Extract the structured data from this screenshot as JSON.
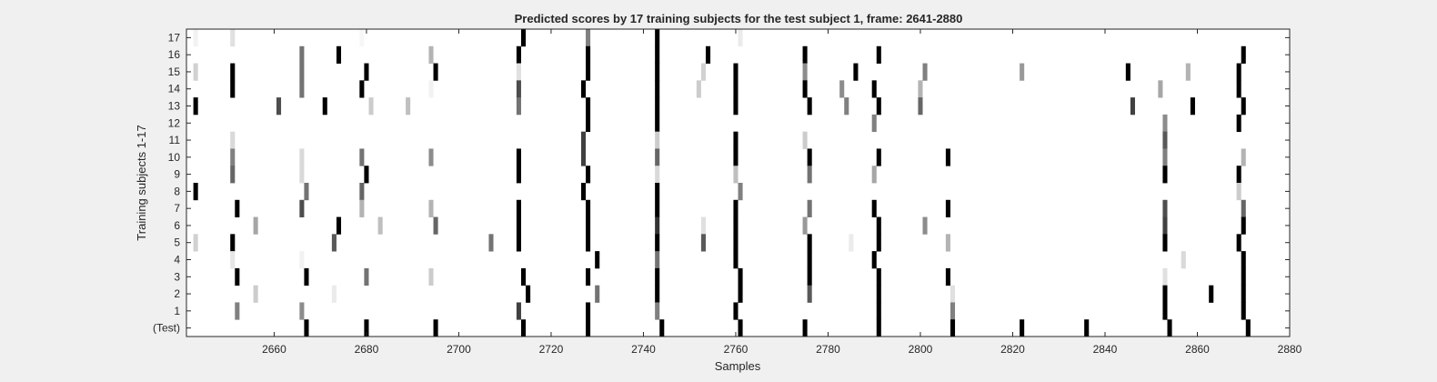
{
  "chart_data": {
    "type": "heatmap",
    "title": "Predicted scores by 17 training subjects for the test subject 1, frame: 2641-2880",
    "xlabel": "Samples",
    "ylabel": "Training subjects 1-17",
    "xlim": [
      2641,
      2880
    ],
    "x_ticks": [
      2660,
      2680,
      2700,
      2720,
      2740,
      2760,
      2780,
      2800,
      2820,
      2840,
      2860,
      2880
    ],
    "y_tick_labels": [
      "17",
      "16",
      "15",
      "14",
      "13",
      "12",
      "11",
      "10",
      "9",
      "8",
      "7",
      "6",
      "5",
      "4",
      "3",
      "2",
      "1",
      "(Test)"
    ],
    "colormap": "gray",
    "colors": {
      "background": "#f0f0f0",
      "axes_face": "#ffffff",
      "axes_edge": "#262626",
      "text": "#262626"
    },
    "grid": false,
    "legend": "none",
    "value_range": [
      0,
      1
    ],
    "note_values": "each mark: sample x and score intensity (1 = black, 0 = white)",
    "rows": [
      {
        "label": "17",
        "marks": [
          [
            2643,
            0.05
          ],
          [
            2651,
            0.12
          ],
          [
            2679,
            0.03
          ],
          [
            2714,
            1.0
          ],
          [
            2728,
            0.5
          ],
          [
            2743,
            1.0
          ],
          [
            2761,
            0.08
          ]
        ]
      },
      {
        "label": "16",
        "marks": [
          [
            2666,
            0.55
          ],
          [
            2674,
            1.0
          ],
          [
            2694,
            0.3
          ],
          [
            2713,
            1.0
          ],
          [
            2728,
            1.0
          ],
          [
            2743,
            1.0
          ],
          [
            2754,
            1.0
          ],
          [
            2775,
            1.0
          ],
          [
            2791,
            1.0
          ],
          [
            2870,
            1.0
          ]
        ]
      },
      {
        "label": "15",
        "marks": [
          [
            2643,
            0.18
          ],
          [
            2651,
            1.0
          ],
          [
            2666,
            0.55
          ],
          [
            2680,
            1.0
          ],
          [
            2695,
            1.0
          ],
          [
            2713,
            0.12
          ],
          [
            2728,
            1.0
          ],
          [
            2743,
            1.0
          ],
          [
            2753,
            0.18
          ],
          [
            2760,
            1.0
          ],
          [
            2775,
            0.45
          ],
          [
            2786,
            1.0
          ],
          [
            2801,
            0.5
          ],
          [
            2822,
            0.4
          ],
          [
            2845,
            1.0
          ],
          [
            2858,
            0.3
          ],
          [
            2869,
            1.0
          ]
        ]
      },
      {
        "label": "14",
        "marks": [
          [
            2651,
            1.0
          ],
          [
            2666,
            0.55
          ],
          [
            2679,
            1.0
          ],
          [
            2694,
            0.05
          ],
          [
            2713,
            0.7
          ],
          [
            2727,
            1.0
          ],
          [
            2743,
            1.0
          ],
          [
            2752,
            0.2
          ],
          [
            2760,
            1.0
          ],
          [
            2775,
            1.0
          ],
          [
            2783,
            0.45
          ],
          [
            2790,
            1.0
          ],
          [
            2800,
            0.3
          ],
          [
            2852,
            0.35
          ],
          [
            2869,
            1.0
          ]
        ]
      },
      {
        "label": "13",
        "marks": [
          [
            2643,
            1.0
          ],
          [
            2661,
            0.7
          ],
          [
            2671,
            1.0
          ],
          [
            2681,
            0.2
          ],
          [
            2689,
            0.25
          ],
          [
            2713,
            0.55
          ],
          [
            2728,
            1.0
          ],
          [
            2743,
            1.0
          ],
          [
            2760,
            1.0
          ],
          [
            2776,
            1.0
          ],
          [
            2784,
            0.5
          ],
          [
            2791,
            1.0
          ],
          [
            2800,
            0.6
          ],
          [
            2846,
            0.75
          ],
          [
            2859,
            1.0
          ],
          [
            2870,
            1.0
          ]
        ]
      },
      {
        "label": "12",
        "marks": [
          [
            2728,
            1.0
          ],
          [
            2743,
            1.0
          ],
          [
            2790,
            0.5
          ],
          [
            2853,
            0.45
          ],
          [
            2869,
            1.0
          ]
        ]
      },
      {
        "label": "11",
        "marks": [
          [
            2651,
            0.15
          ],
          [
            2727,
            0.75
          ],
          [
            2743,
            0.2
          ],
          [
            2760,
            1.0
          ],
          [
            2775,
            0.2
          ],
          [
            2853,
            0.65
          ]
        ]
      },
      {
        "label": "10",
        "marks": [
          [
            2651,
            0.5
          ],
          [
            2666,
            0.15
          ],
          [
            2679,
            0.55
          ],
          [
            2694,
            0.45
          ],
          [
            2713,
            1.0
          ],
          [
            2727,
            0.75
          ],
          [
            2743,
            0.6
          ],
          [
            2760,
            1.0
          ],
          [
            2776,
            1.0
          ],
          [
            2791,
            1.0
          ],
          [
            2806,
            1.0
          ],
          [
            2853,
            0.5
          ],
          [
            2870,
            0.3
          ]
        ]
      },
      {
        "label": "9",
        "marks": [
          [
            2651,
            0.6
          ],
          [
            2666,
            0.15
          ],
          [
            2680,
            1.0
          ],
          [
            2713,
            1.0
          ],
          [
            2728,
            1.0
          ],
          [
            2743,
            0.15
          ],
          [
            2760,
            0.25
          ],
          [
            2776,
            0.55
          ],
          [
            2790,
            0.35
          ],
          [
            2853,
            1.0
          ],
          [
            2869,
            1.0
          ]
        ]
      },
      {
        "label": "8",
        "marks": [
          [
            2643,
            1.0
          ],
          [
            2667,
            0.55
          ],
          [
            2679,
            0.6
          ],
          [
            2727,
            1.0
          ],
          [
            2743,
            1.0
          ],
          [
            2761,
            0.5
          ],
          [
            2869,
            0.2
          ]
        ]
      },
      {
        "label": "7",
        "marks": [
          [
            2652,
            1.0
          ],
          [
            2666,
            0.7
          ],
          [
            2679,
            0.3
          ],
          [
            2694,
            0.3
          ],
          [
            2713,
            1.0
          ],
          [
            2728,
            1.0
          ],
          [
            2743,
            1.0
          ],
          [
            2760,
            1.0
          ],
          [
            2776,
            0.55
          ],
          [
            2790,
            1.0
          ],
          [
            2806,
            1.0
          ],
          [
            2853,
            0.7
          ],
          [
            2870,
            0.6
          ]
        ]
      },
      {
        "label": "6",
        "marks": [
          [
            2656,
            0.35
          ],
          [
            2674,
            1.0
          ],
          [
            2683,
            0.25
          ],
          [
            2695,
            0.6
          ],
          [
            2713,
            1.0
          ],
          [
            2728,
            1.0
          ],
          [
            2743,
            0.8
          ],
          [
            2753,
            0.12
          ],
          [
            2760,
            1.0
          ],
          [
            2775,
            0.4
          ],
          [
            2791,
            1.0
          ],
          [
            2801,
            0.45
          ],
          [
            2853,
            0.75
          ],
          [
            2870,
            1.0
          ]
        ]
      },
      {
        "label": "5",
        "marks": [
          [
            2643,
            0.18
          ],
          [
            2651,
            1.0
          ],
          [
            2673,
            0.65
          ],
          [
            2707,
            0.55
          ],
          [
            2713,
            1.0
          ],
          [
            2728,
            1.0
          ],
          [
            2743,
            1.0
          ],
          [
            2753,
            0.65
          ],
          [
            2760,
            1.0
          ],
          [
            2776,
            1.0
          ],
          [
            2785,
            0.08
          ],
          [
            2791,
            1.0
          ],
          [
            2806,
            0.3
          ],
          [
            2853,
            1.0
          ],
          [
            2869,
            1.0
          ]
        ]
      },
      {
        "label": "4",
        "marks": [
          [
            2651,
            0.1
          ],
          [
            2666,
            0.05
          ],
          [
            2730,
            1.0
          ],
          [
            2743,
            0.55
          ],
          [
            2760,
            1.0
          ],
          [
            2776,
            1.0
          ],
          [
            2790,
            1.0
          ],
          [
            2857,
            0.15
          ],
          [
            2870,
            1.0
          ]
        ]
      },
      {
        "label": "3",
        "marks": [
          [
            2652,
            1.0
          ],
          [
            2667,
            1.0
          ],
          [
            2680,
            0.55
          ],
          [
            2694,
            0.2
          ],
          [
            2714,
            1.0
          ],
          [
            2728,
            1.0
          ],
          [
            2743,
            1.0
          ],
          [
            2761,
            1.0
          ],
          [
            2776,
            1.0
          ],
          [
            2791,
            1.0
          ],
          [
            2806,
            1.0
          ],
          [
            2853,
            0.12
          ],
          [
            2870,
            1.0
          ]
        ]
      },
      {
        "label": "2",
        "marks": [
          [
            2656,
            0.2
          ],
          [
            2673,
            0.08
          ],
          [
            2715,
            1.0
          ],
          [
            2730,
            0.55
          ],
          [
            2743,
            1.0
          ],
          [
            2761,
            1.0
          ],
          [
            2776,
            0.65
          ],
          [
            2791,
            1.0
          ],
          [
            2807,
            0.12
          ],
          [
            2853,
            1.0
          ],
          [
            2863,
            1.0
          ],
          [
            2870,
            1.0
          ]
        ]
      },
      {
        "label": "1",
        "marks": [
          [
            2652,
            0.5
          ],
          [
            2666,
            0.45
          ],
          [
            2713,
            0.75
          ],
          [
            2728,
            1.0
          ],
          [
            2743,
            0.5
          ],
          [
            2760,
            1.0
          ],
          [
            2791,
            1.0
          ],
          [
            2807,
            0.5
          ],
          [
            2853,
            1.0
          ],
          [
            2870,
            1.0
          ]
        ]
      },
      {
        "label": "(Test)",
        "marks": [
          [
            2667,
            1.0
          ],
          [
            2680,
            1.0
          ],
          [
            2695,
            1.0
          ],
          [
            2714,
            1.0
          ],
          [
            2728,
            1.0
          ],
          [
            2744,
            1.0
          ],
          [
            2761,
            1.0
          ],
          [
            2775,
            1.0
          ],
          [
            2791,
            1.0
          ],
          [
            2807,
            1.0
          ],
          [
            2822,
            1.0
          ],
          [
            2836,
            1.0
          ],
          [
            2854,
            1.0
          ],
          [
            2871,
            1.0
          ]
        ]
      }
    ]
  }
}
